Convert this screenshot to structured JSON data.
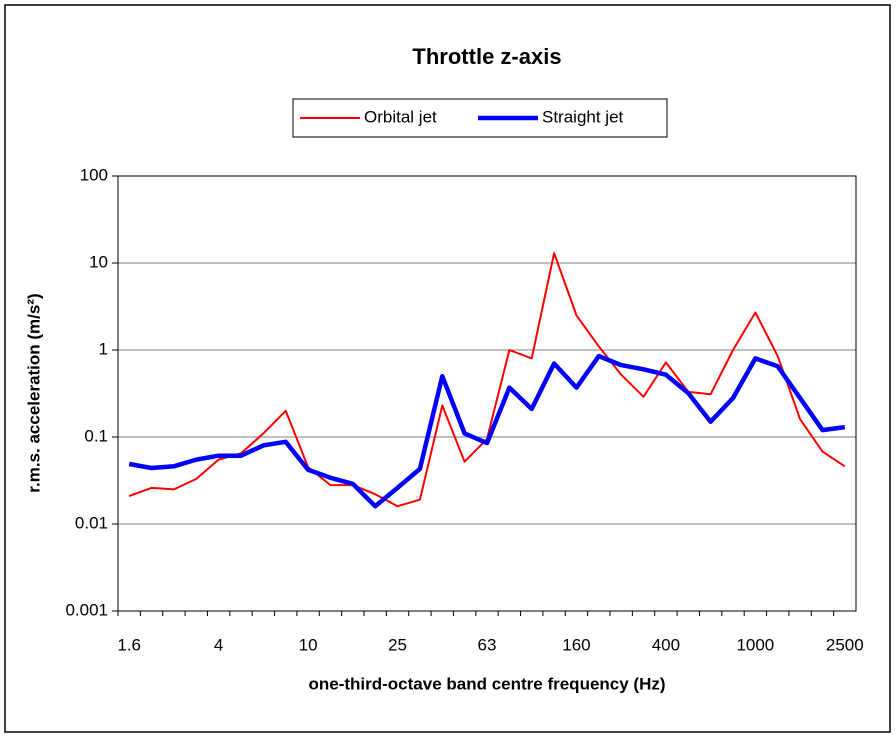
{
  "chart_data": {
    "type": "line",
    "title": "Throttle z-axis",
    "x_label": "one-third-octave band centre frequency (Hz)",
    "y_label": "r.m.s. acceleration (m/s²)",
    "categories": [
      "1.6",
      null,
      null,
      null,
      "4",
      null,
      null,
      null,
      "10",
      null,
      null,
      null,
      "25",
      null,
      null,
      null,
      "63",
      null,
      null,
      null,
      "160",
      null,
      null,
      null,
      "400",
      null,
      null,
      null,
      "1000",
      null,
      null,
      null,
      "2500"
    ],
    "series": [
      {
        "name": "Orbital jet",
        "color": "#ff0000",
        "width": 2,
        "values": [
          0.021,
          0.026,
          0.025,
          0.033,
          0.055,
          0.065,
          0.11,
          0.2,
          0.045,
          0.028,
          0.028,
          0.022,
          0.016,
          0.019,
          0.23,
          0.052,
          0.095,
          1.0,
          0.8,
          13,
          2.5,
          1.1,
          0.52,
          0.29,
          0.72,
          0.33,
          0.31,
          1.0,
          2.7,
          0.85,
          0.16,
          0.068,
          0.046
        ]
      },
      {
        "name": "Straight jet",
        "color": "#0000ff",
        "width": 4.5,
        "values": [
          0.049,
          0.044,
          0.046,
          0.055,
          0.061,
          0.061,
          0.08,
          0.088,
          0.042,
          0.034,
          0.029,
          0.016,
          0.026,
          0.043,
          0.5,
          0.11,
          0.085,
          0.37,
          0.21,
          0.7,
          0.37,
          0.85,
          0.67,
          0.6,
          0.52,
          0.32,
          0.15,
          0.28,
          0.8,
          0.65,
          0.28,
          0.12,
          0.13
        ]
      }
    ],
    "ylim": [
      0.001,
      100
    ],
    "yticks": [
      0.001,
      0.01,
      0.1,
      1,
      10,
      100
    ],
    "log_y": true,
    "grid": true,
    "legend": "top"
  }
}
